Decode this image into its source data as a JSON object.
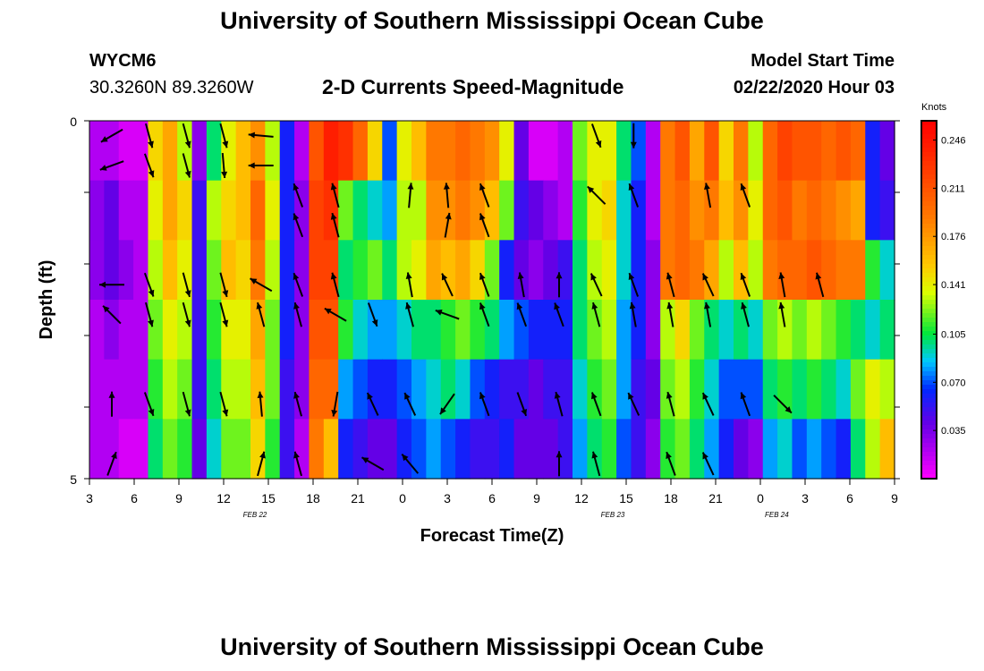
{
  "header": {
    "title": "University of Southern Mississippi Ocean Cube",
    "station_id": "WYCM6",
    "coordinates": "30.3260N 89.3260W",
    "product": "2-D Currents Speed-Magnitude",
    "model_start_label": "Model Start Time",
    "model_start_value": "02/22/2020 Hour 03"
  },
  "footer": {
    "title": "University of Southern Mississippi Ocean Cube"
  },
  "chart_data": {
    "type": "heatmap",
    "title": "2-D Currents Speed-Magnitude",
    "xlabel": "Forecast Time(Z)",
    "ylabel": "Depth (ft)",
    "y_ticks": [
      "0",
      "5"
    ],
    "x_tick_labels": [
      "3",
      "6",
      "9",
      "12",
      "15",
      "18",
      "21",
      "0",
      "3",
      "6",
      "9",
      "12",
      "15",
      "18",
      "21",
      "0",
      "3",
      "6",
      "9"
    ],
    "date_labels": [
      "FEB 22",
      "FEB 23",
      "FEB 24"
    ],
    "colorbar": {
      "unit": "Knots",
      "ticks": [
        "0.246",
        "0.211",
        "0.176",
        "0.141",
        "0.105",
        "0.070",
        "0.035"
      ],
      "range": [
        0,
        0.26
      ]
    },
    "depth_layers_ft": [
      0,
      1,
      2,
      3,
      4,
      5
    ],
    "forecast_hours": [
      3,
      4,
      5,
      6,
      7,
      8,
      9,
      10,
      11,
      12,
      13,
      14,
      15,
      16,
      17,
      18,
      19,
      20,
      21,
      22,
      23,
      24,
      25,
      26,
      27,
      28,
      29,
      30,
      31,
      32,
      33,
      34,
      35,
      36,
      37,
      38,
      39,
      40,
      41,
      42,
      43,
      44,
      45,
      46,
      47,
      48,
      49,
      50,
      51,
      52,
      53,
      54,
      55,
      56,
      57
    ],
    "speed_knots": [
      [
        0.02,
        0.02,
        0.01,
        0.01,
        0.15,
        0.17,
        0.13,
        0.03,
        0.1,
        0.14,
        0.16,
        0.18,
        0.13,
        0.06,
        0.02,
        0.21,
        0.24,
        0.23,
        0.2,
        0.15,
        0.07,
        0.14,
        0.16,
        0.19,
        0.19,
        0.2,
        0.19,
        0.18,
        0.14,
        0.04,
        0.01,
        0.01,
        0.02,
        0.12,
        0.14,
        0.14,
        0.1,
        0.07,
        0.02,
        0.19,
        0.21,
        0.17,
        0.21,
        0.15,
        0.19,
        0.13,
        0.2,
        0.22,
        0.21,
        0.21,
        0.2,
        0.21,
        0.2,
        0.06,
        0.04
      ],
      [
        0.03,
        0.04,
        0.02,
        0.02,
        0.14,
        0.17,
        0.15,
        0.05,
        0.13,
        0.15,
        0.16,
        0.2,
        0.14,
        0.06,
        0.03,
        0.22,
        0.23,
        0.12,
        0.1,
        0.09,
        0.08,
        0.13,
        0.13,
        0.18,
        0.18,
        0.19,
        0.18,
        0.16,
        0.12,
        0.05,
        0.04,
        0.03,
        0.02,
        0.11,
        0.14,
        0.15,
        0.09,
        0.06,
        0.02,
        0.19,
        0.2,
        0.18,
        0.19,
        0.16,
        0.18,
        0.14,
        0.2,
        0.21,
        0.19,
        0.2,
        0.19,
        0.18,
        0.17,
        0.06,
        0.05
      ],
      [
        0.03,
        0.04,
        0.03,
        0.02,
        0.13,
        0.16,
        0.14,
        0.05,
        0.12,
        0.16,
        0.15,
        0.19,
        0.13,
        0.06,
        0.03,
        0.22,
        0.22,
        0.1,
        0.11,
        0.12,
        0.1,
        0.13,
        0.14,
        0.17,
        0.16,
        0.17,
        0.15,
        0.12,
        0.06,
        0.04,
        0.03,
        0.04,
        0.05,
        0.1,
        0.13,
        0.14,
        0.09,
        0.06,
        0.03,
        0.19,
        0.2,
        0.19,
        0.17,
        0.13,
        0.16,
        0.13,
        0.19,
        0.2,
        0.2,
        0.21,
        0.2,
        0.19,
        0.19,
        0.11,
        0.09
      ],
      [
        0.02,
        0.03,
        0.02,
        0.02,
        0.12,
        0.14,
        0.13,
        0.05,
        0.11,
        0.14,
        0.14,
        0.17,
        0.12,
        0.06,
        0.03,
        0.21,
        0.21,
        0.11,
        0.09,
        0.08,
        0.08,
        0.09,
        0.1,
        0.1,
        0.11,
        0.12,
        0.11,
        0.1,
        0.08,
        0.07,
        0.06,
        0.06,
        0.06,
        0.1,
        0.12,
        0.13,
        0.08,
        0.06,
        0.03,
        0.13,
        0.15,
        0.12,
        0.1,
        0.09,
        0.1,
        0.09,
        0.12,
        0.13,
        0.12,
        0.13,
        0.12,
        0.11,
        0.1,
        0.09,
        0.1
      ],
      [
        0.02,
        0.02,
        0.02,
        0.02,
        0.11,
        0.13,
        0.12,
        0.05,
        0.1,
        0.13,
        0.13,
        0.16,
        0.12,
        0.05,
        0.03,
        0.2,
        0.2,
        0.08,
        0.07,
        0.06,
        0.06,
        0.07,
        0.08,
        0.09,
        0.1,
        0.09,
        0.07,
        0.06,
        0.05,
        0.05,
        0.04,
        0.05,
        0.05,
        0.09,
        0.11,
        0.12,
        0.08,
        0.05,
        0.04,
        0.12,
        0.13,
        0.11,
        0.09,
        0.07,
        0.07,
        0.07,
        0.1,
        0.11,
        0.1,
        0.11,
        0.1,
        0.09,
        0.12,
        0.14,
        0.13
      ],
      [
        0.02,
        0.02,
        0.01,
        0.01,
        0.1,
        0.12,
        0.11,
        0.04,
        0.09,
        0.12,
        0.12,
        0.15,
        0.11,
        0.05,
        0.02,
        0.19,
        0.16,
        0.06,
        0.05,
        0.04,
        0.04,
        0.06,
        0.07,
        0.08,
        0.07,
        0.06,
        0.05,
        0.05,
        0.06,
        0.04,
        0.04,
        0.04,
        0.05,
        0.08,
        0.1,
        0.11,
        0.07,
        0.05,
        0.03,
        0.11,
        0.12,
        0.1,
        0.08,
        0.06,
        0.04,
        0.03,
        0.08,
        0.09,
        0.07,
        0.08,
        0.07,
        0.06,
        0.1,
        0.13,
        0.16
      ]
    ],
    "vector_times": [
      4.5,
      7,
      9.5,
      12,
      14.5,
      17,
      19.5,
      22,
      24.5,
      27,
      29.5,
      32,
      34.5,
      37,
      39.5,
      42,
      44.5,
      47,
      49.5,
      52,
      54.5
    ],
    "vector_directions_deg": [
      [
        240,
        165,
        165,
        165,
        275,
        null,
        null,
        null,
        null,
        null,
        null,
        null,
        null,
        160,
        180,
        null,
        null,
        null,
        null,
        null,
        null
      ],
      [
        250,
        160,
        165,
        175,
        270,
        null,
        null,
        null,
        null,
        null,
        null,
        null,
        null,
        null,
        null,
        null,
        null,
        null,
        null,
        null,
        null
      ],
      [
        null,
        null,
        null,
        null,
        null,
        340,
        345,
        null,
        5,
        355,
        340,
        null,
        null,
        315,
        340,
        null,
        350,
        340,
        null,
        null,
        null
      ],
      [
        null,
        null,
        null,
        null,
        null,
        340,
        345,
        null,
        null,
        10,
        340,
        null,
        null,
        null,
        null,
        null,
        null,
        null,
        null,
        null,
        null
      ],
      [
        null,
        null,
        null,
        null,
        null,
        null,
        null,
        null,
        null,
        null,
        null,
        null,
        null,
        null,
        null,
        null,
        null,
        null,
        null,
        null,
        null
      ],
      [
        270,
        160,
        165,
        165,
        300,
        340,
        345,
        null,
        350,
        335,
        340,
        350,
        360,
        335,
        340,
        345,
        335,
        340,
        350,
        345,
        null
      ],
      [
        315,
        165,
        165,
        165,
        345,
        345,
        300,
        160,
        345,
        290,
        340,
        340,
        340,
        345,
        350,
        350,
        350,
        345,
        350,
        null,
        null
      ],
      [
        null,
        null,
        null,
        null,
        null,
        null,
        null,
        null,
        null,
        null,
        null,
        null,
        null,
        null,
        null,
        null,
        null,
        null,
        null,
        null,
        null
      ],
      [
        null,
        null,
        null,
        null,
        null,
        null,
        null,
        null,
        null,
        null,
        null,
        null,
        null,
        null,
        null,
        null,
        null,
        null,
        null,
        null,
        null
      ],
      [
        0,
        160,
        165,
        165,
        355,
        345,
        190,
        335,
        335,
        215,
        340,
        160,
        345,
        340,
        335,
        345,
        335,
        340,
        135,
        null,
        null
      ],
      [
        null,
        null,
        null,
        null,
        null,
        null,
        null,
        null,
        null,
        null,
        null,
        null,
        null,
        null,
        null,
        null,
        null,
        null,
        null,
        null,
        null
      ],
      [
        20,
        null,
        null,
        null,
        15,
        345,
        null,
        300,
        320,
        null,
        null,
        null,
        360,
        345,
        null,
        340,
        335,
        null,
        null,
        null,
        null
      ]
    ]
  }
}
